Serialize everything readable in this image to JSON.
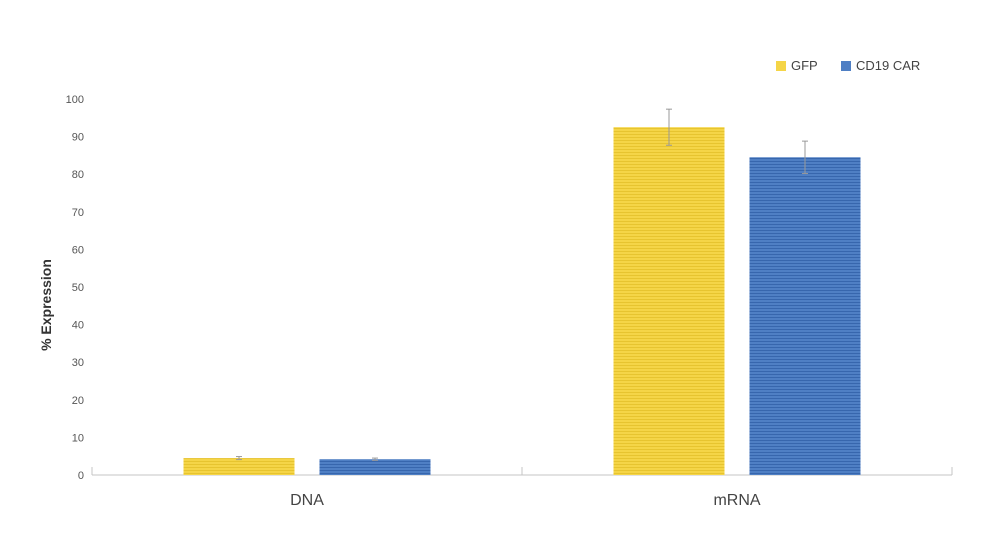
{
  "chart_data": {
    "type": "bar",
    "categories": [
      "DNA",
      "mRNA"
    ],
    "series": [
      {
        "name": "GFP",
        "values": [
          4.5,
          92.5
        ],
        "errors": [
          0.4,
          4.8
        ],
        "color": "#f5d547",
        "stripe": "#e7c42f"
      },
      {
        "name": "CD19 CAR",
        "values": [
          4.2,
          84.5
        ],
        "errors": [
          0.3,
          4.3
        ],
        "color": "#4f7fc4",
        "stripe": "#3766ad"
      }
    ],
    "title": "",
    "xlabel": "",
    "ylabel": "% Expression",
    "ylim": [
      0,
      100
    ],
    "yticks": [
      0,
      10,
      20,
      30,
      40,
      50,
      60,
      70,
      80,
      90,
      100
    ],
    "legend_position": "top-right",
    "grid": false,
    "error_bar_color": "#999999",
    "axis_color": "#c4c4c4"
  }
}
